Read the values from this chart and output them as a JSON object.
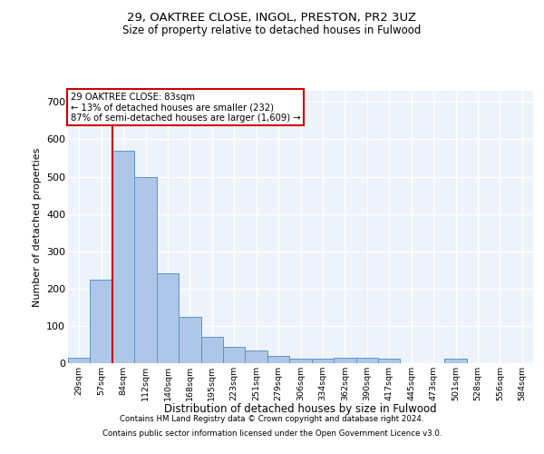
{
  "title1": "29, OAKTREE CLOSE, INGOL, PRESTON, PR2 3UZ",
  "title2": "Size of property relative to detached houses in Fulwood",
  "xlabel": "Distribution of detached houses by size in Fulwood",
  "ylabel": "Number of detached properties",
  "footer1": "Contains HM Land Registry data © Crown copyright and database right 2024.",
  "footer2": "Contains public sector information licensed under the Open Government Licence v3.0.",
  "bin_labels": [
    "29sqm",
    "57sqm",
    "84sqm",
    "112sqm",
    "140sqm",
    "168sqm",
    "195sqm",
    "223sqm",
    "251sqm",
    "279sqm",
    "306sqm",
    "334sqm",
    "362sqm",
    "390sqm",
    "417sqm",
    "445sqm",
    "473sqm",
    "501sqm",
    "528sqm",
    "556sqm",
    "584sqm"
  ],
  "bar_values": [
    15,
    225,
    570,
    500,
    240,
    125,
    70,
    45,
    35,
    20,
    12,
    12,
    15,
    15,
    12,
    0,
    0,
    12,
    0,
    0,
    0
  ],
  "bar_color": "#aec6e8",
  "bar_edge_color": "#5a96c8",
  "property_line_x": 1.5,
  "annotation_line1": "29 OAKTREE CLOSE: 83sqm",
  "annotation_line2": "← 13% of detached houses are smaller (232)",
  "annotation_line3": "87% of semi-detached houses are larger (1,609) →",
  "ylim": [
    0,
    730
  ],
  "yticks": [
    0,
    100,
    200,
    300,
    400,
    500,
    600,
    700
  ],
  "background_color": "#eef2fb",
  "grid_color": "#ffffff",
  "annotation_box_color": "#ffffff",
  "annotation_box_edge": "#cc0000",
  "red_line_color": "#cc0000"
}
